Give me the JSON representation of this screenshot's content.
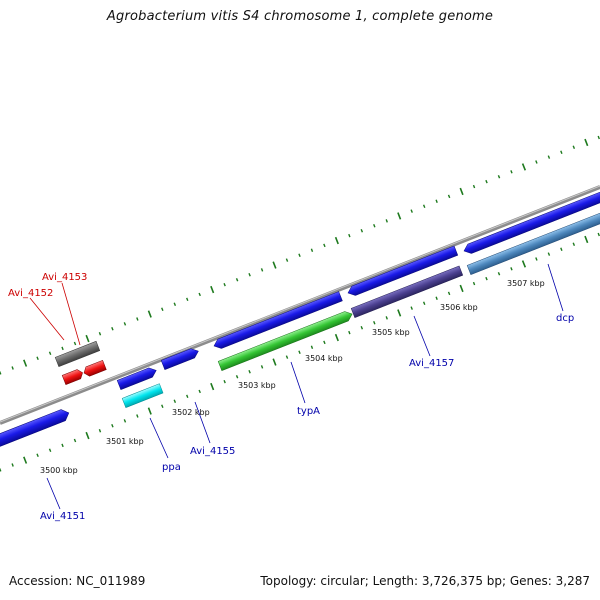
{
  "title": "Agrobacterium vitis S4 chromosome 1, complete genome",
  "footer": {
    "accession": "Accession: NC_011989",
    "topology": "Topology: circular; Length: 3,726,375 bp; Genes: 3,287"
  },
  "scale_labels": [
    "3500 kbp",
    "3501 kbp",
    "3502 kbp",
    "3503 kbp",
    "3504 kbp",
    "3505 kbp",
    "3506 kbp",
    "3507 kbp"
  ],
  "gene_labels": {
    "avi_4153": "Avi_4153",
    "avi_4152": "Avi_4152",
    "avi_4151": "Avi_4151",
    "ppa": "ppa",
    "avi_4155": "Avi_4155",
    "typa": "typA",
    "avi_4157": "Avi_4157",
    "dcp": "dcp"
  },
  "colors": {
    "backbone": "#8c8c8c",
    "tick": "#1e7a1e",
    "cds_blue": "#1414e6",
    "ppa": "#00e5ee",
    "typa": "#33c433",
    "avi_4157": "#4a3f8f",
    "dcp": "#4d87bd",
    "pseudo_gray": "#6a6a6a",
    "trna_red": "#ee1111",
    "label_blue": "#0000aa",
    "label_red": "#cc0000"
  }
}
